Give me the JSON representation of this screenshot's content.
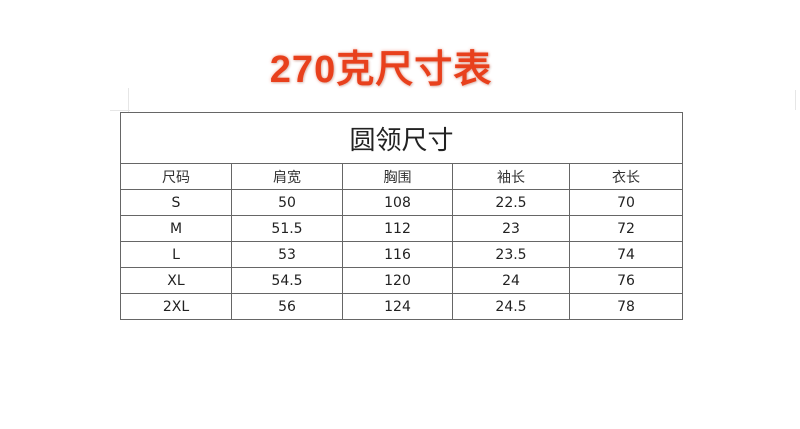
{
  "heading": {
    "text": "270克尺寸表",
    "color": "#e8401c"
  },
  "table": {
    "title": "圆领尺寸",
    "columns": [
      "尺码",
      "肩宽",
      "胸围",
      "袖长",
      "衣长"
    ],
    "rows": [
      [
        "S",
        "50",
        "108",
        "22.5",
        "70"
      ],
      [
        "M",
        "51.5",
        "112",
        "23",
        "72"
      ],
      [
        "L",
        "53",
        "116",
        "23.5",
        "74"
      ],
      [
        "XL",
        "54.5",
        "120",
        "24",
        "76"
      ],
      [
        "2XL",
        "56",
        "124",
        "24.5",
        "78"
      ]
    ]
  }
}
